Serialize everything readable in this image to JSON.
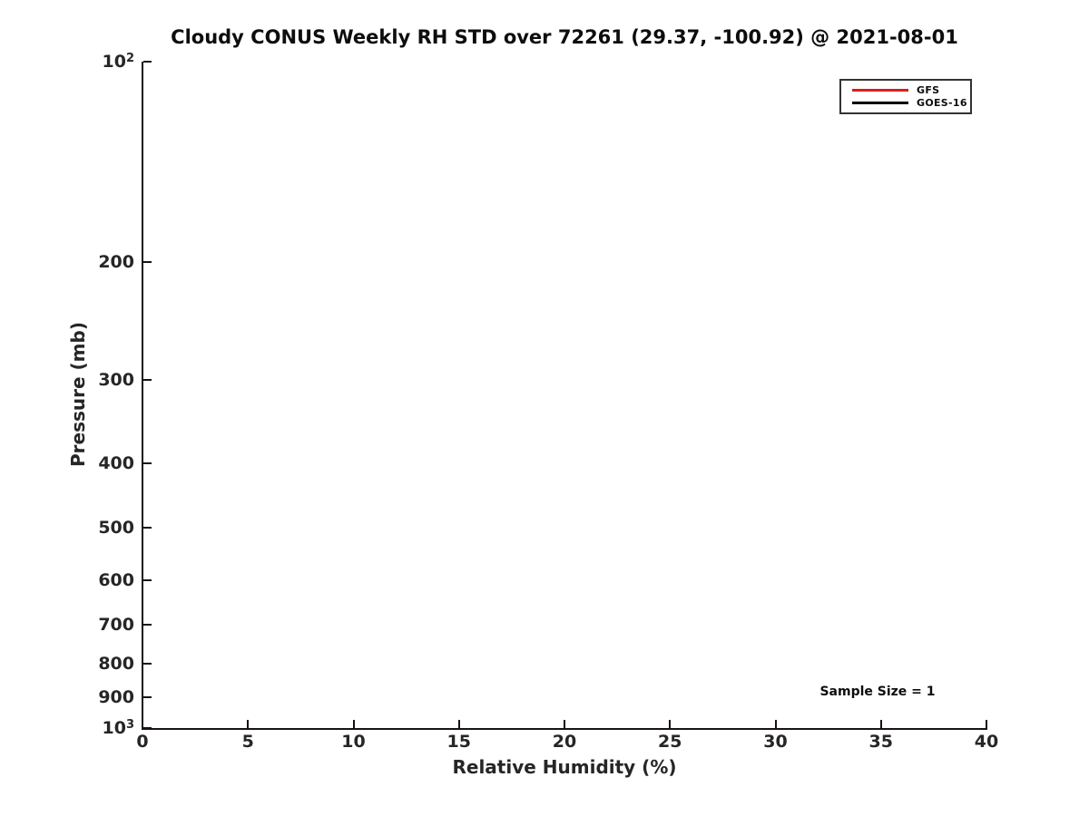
{
  "chart_data": {
    "type": "line",
    "title": "Cloudy CONUS Weekly RH STD over 72261 (29.37, -100.92) @ 2021-08-01",
    "xlabel": "Relative Humidity (%)",
    "ylabel": "Pressure (mb)",
    "xlim": [
      0,
      40
    ],
    "x_ticks": [
      0,
      5,
      10,
      15,
      20,
      25,
      30,
      35,
      40
    ],
    "y_scale": "log",
    "ylim": [
      100,
      1000
    ],
    "y_orientation": "pressure-increasing-downward",
    "y_ticks": [
      {
        "value": 100,
        "label": "10^2"
      },
      {
        "value": 200,
        "label": "200"
      },
      {
        "value": 300,
        "label": "300"
      },
      {
        "value": 400,
        "label": "400"
      },
      {
        "value": 500,
        "label": "500"
      },
      {
        "value": 600,
        "label": "600"
      },
      {
        "value": 700,
        "label": "700"
      },
      {
        "value": 800,
        "label": "800"
      },
      {
        "value": 900,
        "label": "900"
      },
      {
        "value": 1000,
        "label": "10^3"
      }
    ],
    "grid": false,
    "tick_direction": "in",
    "legend": {
      "position": "top-right",
      "entries": [
        {
          "name": "GFS",
          "color": "#d81e1e"
        },
        {
          "name": "GOES-16",
          "color": "#000000"
        }
      ]
    },
    "series": [
      {
        "name": "GFS",
        "color": "#d81e1e",
        "points": []
      },
      {
        "name": "GOES-16",
        "color": "#000000",
        "points": []
      }
    ],
    "annotations": [
      {
        "text": "Sample Size = 1",
        "position": "lower-right"
      }
    ]
  },
  "colors": {
    "background": "#ffffff",
    "axis": "#1a1212",
    "tick_text": "#262626",
    "title_text": "#0d0d0d",
    "gfs_red": "#d81e1e",
    "goes_black": "#000000"
  }
}
